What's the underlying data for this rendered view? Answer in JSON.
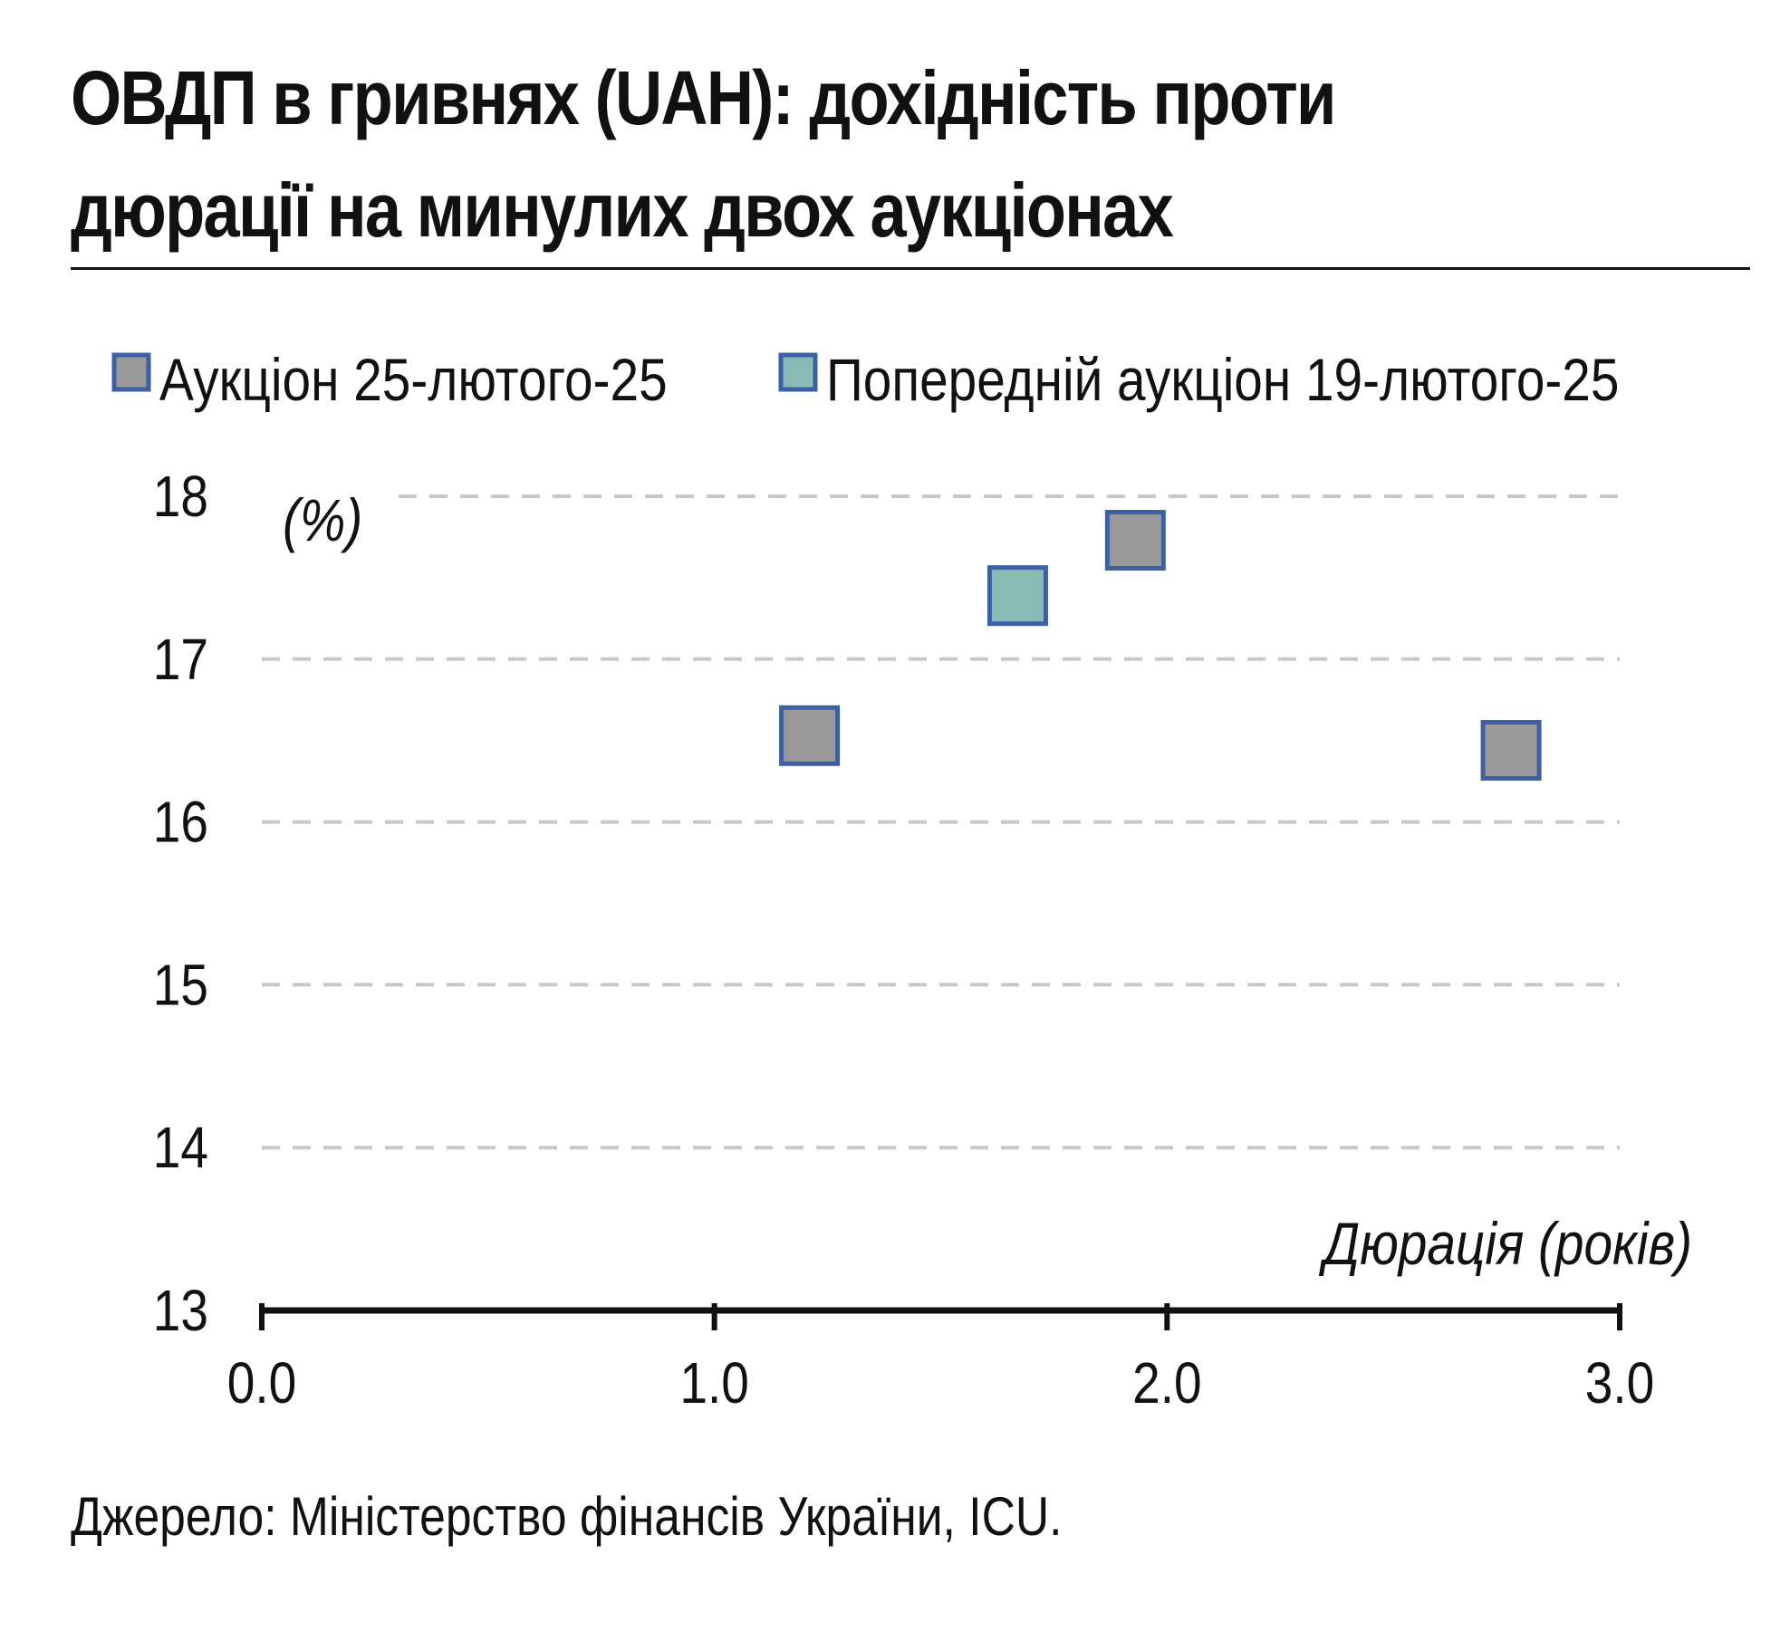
{
  "title_lines": [
    "ОВДП в гривнях (UAH): дохідність проти",
    "дюрації на минулих двох аукціонах"
  ],
  "source": "Джерело: Міністерство фінансів України, ICU.",
  "chart_data": {
    "type": "scatter",
    "x_label": "Дюрація (років)",
    "y_label": "(%)",
    "xlim": [
      0,
      3
    ],
    "ylim": [
      13,
      18
    ],
    "x_ticks": [
      0,
      1,
      2,
      3
    ],
    "x_tick_labels": [
      "0.0",
      "1.0",
      "2.0",
      "3.0"
    ],
    "y_ticks": [
      13,
      14,
      15,
      16,
      17,
      18
    ],
    "y_tick_labels": [
      "13",
      "14",
      "15",
      "16",
      "17",
      "18"
    ],
    "grid": "horizontal-dashed",
    "legend_position": "top",
    "series": [
      {
        "name": "Аукціон 25-лютого-25",
        "fill": "#999999",
        "stroke": "#3d5fa3",
        "points": [
          {
            "x": 1.21,
            "y": 16.53
          },
          {
            "x": 1.93,
            "y": 17.73
          },
          {
            "x": 2.76,
            "y": 16.44
          }
        ]
      },
      {
        "name": "Попередній аукціон 19-лютого-25",
        "fill": "#88bbb5",
        "stroke": "#3d5fa3",
        "points": [
          {
            "x": 1.67,
            "y": 17.39
          }
        ]
      }
    ],
    "colors": {
      "grid": "#c8c8c8",
      "axis": "#111111",
      "text": "#111111"
    }
  }
}
